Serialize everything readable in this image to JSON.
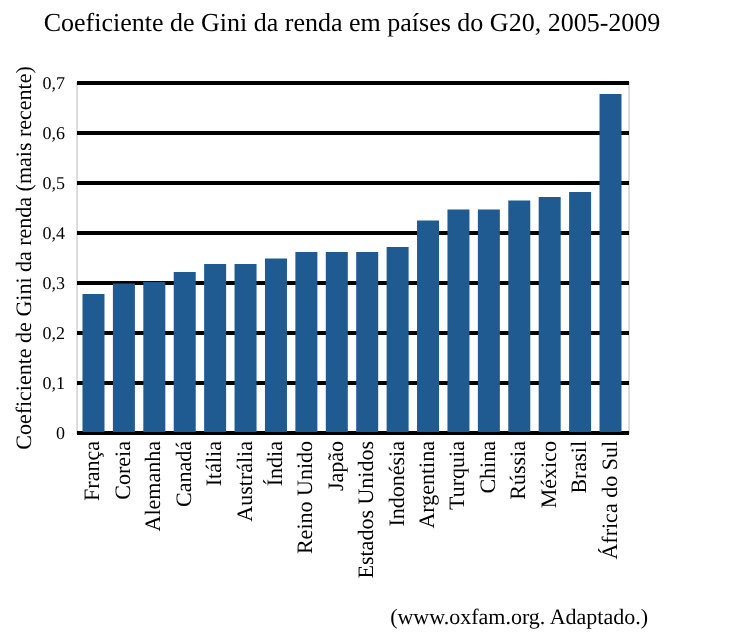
{
  "chart_data": {
    "type": "bar",
    "title": "Coeficiente de Gini da renda em países do G20, 2005-2009",
    "ylabel": "Coeficiente de Gini da renda (mais recente)",
    "categories": [
      "França",
      "Coreia",
      "Alemanha",
      "Canadá",
      "Itália",
      "Austrália",
      "Índia",
      "Reino Unido",
      "Japão",
      "Estados Unidos",
      "Indonésia",
      "Argentina",
      "Turquia",
      "China",
      "Rússia",
      "México",
      "Brasil",
      "África do Sul"
    ],
    "values": [
      0.276,
      0.297,
      0.3,
      0.32,
      0.336,
      0.336,
      0.347,
      0.36,
      0.36,
      0.36,
      0.37,
      0.423,
      0.445,
      0.445,
      0.463,
      0.47,
      0.48,
      0.676
    ],
    "color": "#1f5b91",
    "ylim": [
      0,
      0.7
    ],
    "yticks": [
      0,
      {
        "value": 0.1,
        "label": "0,1"
      },
      {
        "value": 0.2,
        "label": "0,2"
      },
      {
        "value": 0.3,
        "label": "0,3"
      },
      {
        "value": 0.4,
        "label": "0,4"
      },
      {
        "value": 0.5,
        "label": "0,5"
      },
      {
        "value": 0.6,
        "label": "0,6"
      },
      {
        "value": 0.7,
        "label": "0,7"
      }
    ],
    "grid": "y",
    "annotations": [
      "(www.oxfam.org. Adaptado.)"
    ]
  }
}
